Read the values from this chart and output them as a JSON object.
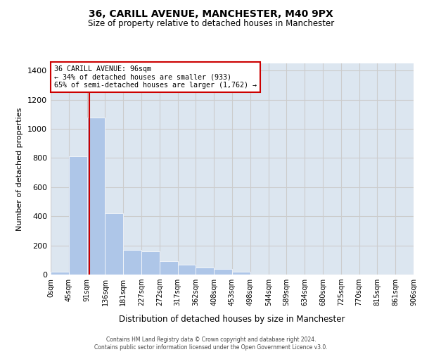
{
  "title_line1": "36, CARILL AVENUE, MANCHESTER, M40 9PX",
  "title_line2": "Size of property relative to detached houses in Manchester",
  "xlabel": "Distribution of detached houses by size in Manchester",
  "ylabel": "Number of detached properties",
  "bar_values": [
    20,
    810,
    1080,
    420,
    170,
    160,
    90,
    70,
    50,
    40,
    20,
    0,
    0,
    0,
    0,
    0,
    0,
    0,
    0,
    0
  ],
  "bin_edges": [
    0,
    45,
    91,
    136,
    181,
    227,
    272,
    317,
    362,
    408,
    453,
    498,
    544,
    589,
    634,
    680,
    725,
    770,
    815,
    861,
    906
  ],
  "tick_labels": [
    "0sqm",
    "45sqm",
    "91sqm",
    "136sqm",
    "181sqm",
    "227sqm",
    "272sqm",
    "317sqm",
    "362sqm",
    "408sqm",
    "453sqm",
    "498sqm",
    "544sqm",
    "589sqm",
    "634sqm",
    "680sqm",
    "725sqm",
    "770sqm",
    "815sqm",
    "861sqm",
    "906sqm"
  ],
  "ylim": [
    0,
    1450
  ],
  "yticks": [
    0,
    200,
    400,
    600,
    800,
    1000,
    1200,
    1400
  ],
  "bar_color": "#aec6e8",
  "grid_color": "#cccccc",
  "bg_color": "#dce6f0",
  "vline_x": 96,
  "vline_color": "#cc0000",
  "annotation_text": "36 CARILL AVENUE: 96sqm\n← 34% of detached houses are smaller (933)\n65% of semi-detached houses are larger (1,762) →",
  "annotation_box_color": "#cc0000",
  "footer_line1": "Contains HM Land Registry data © Crown copyright and database right 2024.",
  "footer_line2": "Contains public sector information licensed under the Open Government Licence v3.0."
}
